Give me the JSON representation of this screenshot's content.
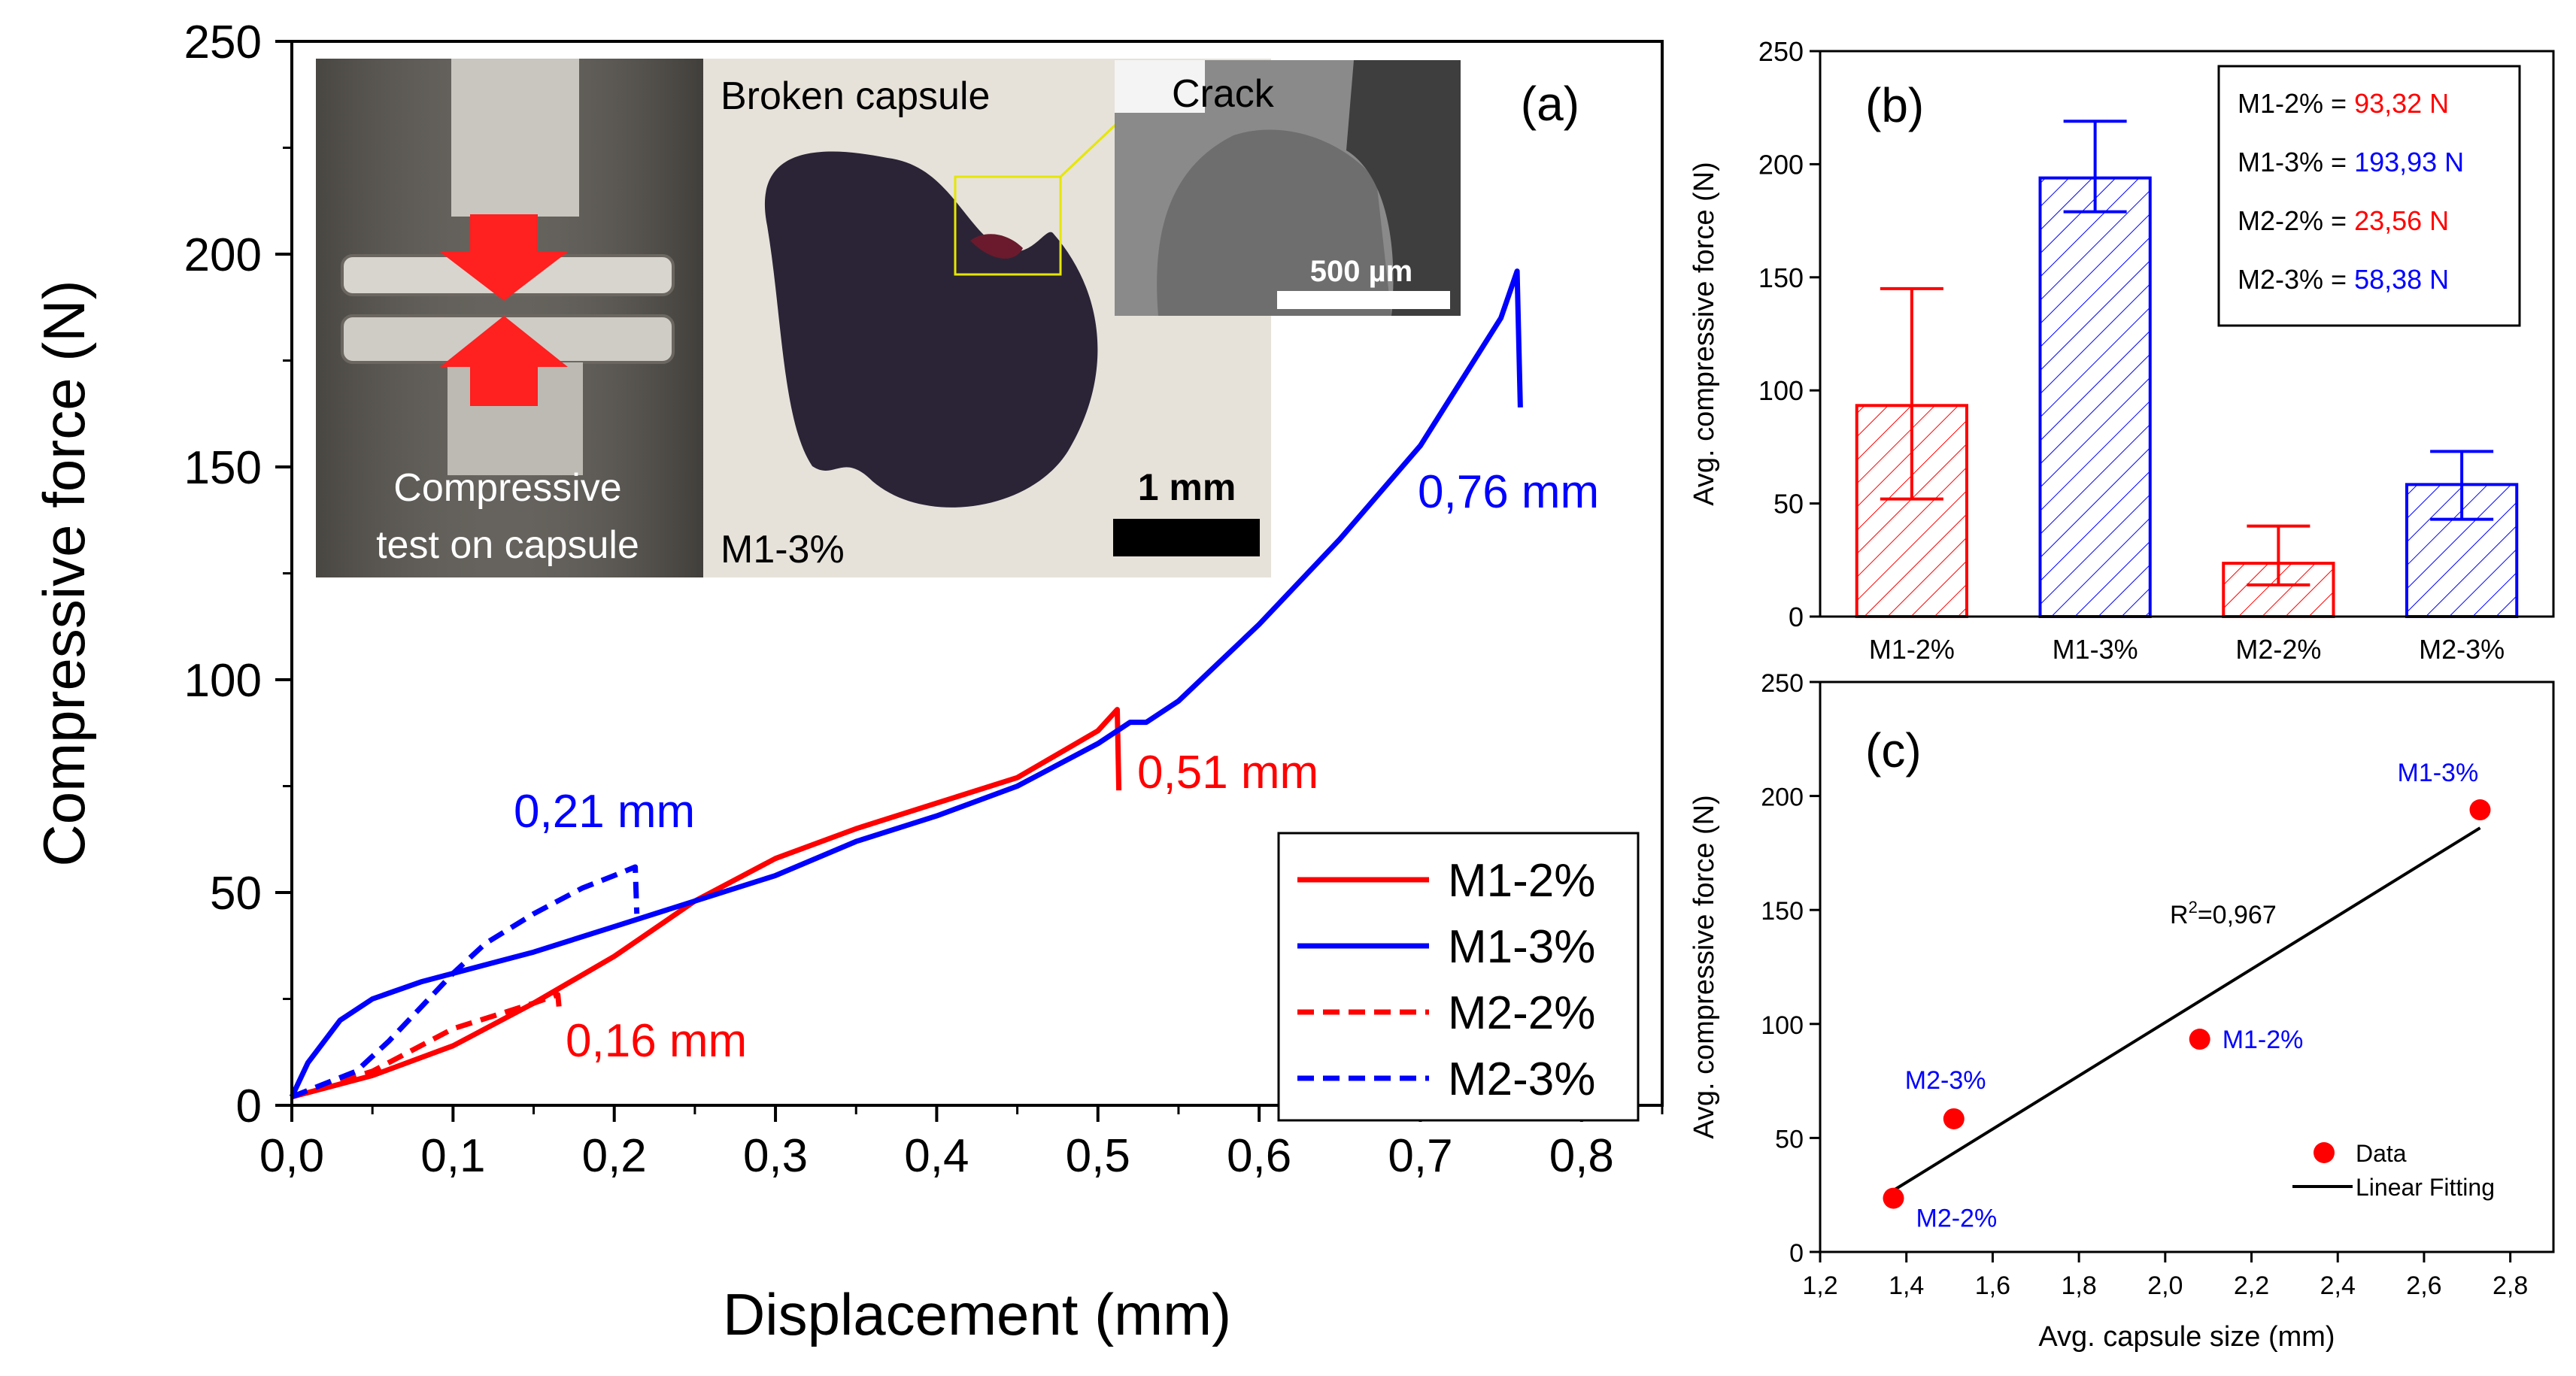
{
  "chart_data": [
    {
      "panel": "(a)",
      "type": "line",
      "xlabel": "Displacement (mm)",
      "ylabel": "Compressive force (N)",
      "xlim": [
        0,
        0.85
      ],
      "ylim": [
        0,
        250
      ],
      "xticks": [
        "0,0",
        "0,1",
        "0,2",
        "0,3",
        "0,4",
        "0,5",
        "0,6",
        "0,7",
        "0,8"
      ],
      "yticks": [
        "0",
        "50",
        "100",
        "150",
        "200",
        "250"
      ],
      "series": [
        {
          "name": "M1-2%",
          "color": "#ff0000",
          "style": "solid",
          "x": [
            0,
            0.05,
            0.1,
            0.15,
            0.2,
            0.25,
            0.3,
            0.35,
            0.4,
            0.45,
            0.5,
            0.512,
            0.513
          ],
          "y": [
            2,
            7,
            14,
            24,
            35,
            48,
            58,
            65,
            71,
            77,
            88,
            93,
            74
          ]
        },
        {
          "name": "M1-3%",
          "color": "#0000ff",
          "style": "solid",
          "x": [
            0,
            0.01,
            0.03,
            0.05,
            0.08,
            0.1,
            0.15,
            0.2,
            0.25,
            0.3,
            0.35,
            0.4,
            0.45,
            0.5,
            0.52,
            0.53,
            0.55,
            0.6,
            0.65,
            0.7,
            0.75,
            0.76,
            0.762
          ],
          "y": [
            2,
            10,
            20,
            25,
            29,
            31,
            36,
            42,
            48,
            54,
            62,
            68,
            75,
            85,
            90,
            90,
            95,
            113,
            133,
            155,
            185,
            196,
            164
          ]
        },
        {
          "name": "M2-2%",
          "color": "#ff0000",
          "style": "dashed",
          "x": [
            0,
            0.05,
            0.1,
            0.15,
            0.165,
            0.166
          ],
          "y": [
            2,
            8,
            18,
            24,
            26,
            22
          ]
        },
        {
          "name": "M2-3%",
          "color": "#0000ff",
          "style": "dashed",
          "x": [
            0,
            0.04,
            0.06,
            0.08,
            0.1,
            0.12,
            0.15,
            0.18,
            0.2,
            0.213,
            0.214
          ],
          "y": [
            2,
            8,
            15,
            23,
            31,
            38,
            45,
            51,
            54,
            56,
            45
          ]
        }
      ],
      "annotations": [
        {
          "text": "0,76 mm",
          "color": "#0000ff"
        },
        {
          "text": "0,51 mm",
          "color": "#ff0000"
        },
        {
          "text": "0,21 mm",
          "color": "#0000ff"
        },
        {
          "text": "0,16 mm",
          "color": "#ff0000"
        }
      ],
      "panel_label": "(a)",
      "legend": "bottom-right",
      "inset": {
        "photo_caption": [
          "Compressive",
          "test on capsule"
        ],
        "capsule_title": "Broken capsule",
        "crack_label": "Crack",
        "sample_label": "M1-3%",
        "scale_1": "1 mm",
        "scale_2": "500 µm"
      }
    },
    {
      "panel": "(b)",
      "type": "bar",
      "xlabel": "",
      "ylabel": "Avg. compressive force (N)",
      "ylim": [
        0,
        250
      ],
      "yticks": [
        "0",
        "50",
        "100",
        "150",
        "200",
        "250"
      ],
      "categories": [
        "M1-2%",
        "M1-3%",
        "M2-2%",
        "M2-3%"
      ],
      "values": [
        93.32,
        193.93,
        23.56,
        58.38
      ],
      "error_low": [
        52,
        179,
        14,
        43
      ],
      "error_high": [
        145,
        219,
        40,
        73
      ],
      "colors": [
        "#ff0000",
        "#0000ff",
        "#ff0000",
        "#0000ff"
      ],
      "legend": "top-right",
      "legend_entries": [
        {
          "label": "M1-2% = ",
          "value": "93,32 N",
          "color": "#ff0000"
        },
        {
          "label": "M1-3% = ",
          "value": "193,93 N",
          "color": "#0000ff"
        },
        {
          "label": "M2-2% = ",
          "value": "23,56 N",
          "color": "#ff0000"
        },
        {
          "label": "M2-3% = ",
          "value": "58,38 N",
          "color": "#0000ff"
        }
      ],
      "panel_label": "(b)"
    },
    {
      "panel": "(c)",
      "type": "scatter",
      "xlabel": "Avg. capsule size (mm)",
      "ylabel": "Avg. compressive force (N)",
      "xlim": [
        1.2,
        2.9
      ],
      "ylim": [
        0,
        250
      ],
      "xticks": [
        "1,2",
        "1,4",
        "1,6",
        "1,8",
        "2,0",
        "2,2",
        "2,4",
        "2,6",
        "2,8"
      ],
      "yticks": [
        "0",
        "50",
        "100",
        "150",
        "200",
        "250"
      ],
      "points": [
        {
          "label": "M2-2%",
          "x": 1.37,
          "y": 23.56
        },
        {
          "label": "M2-3%",
          "x": 1.51,
          "y": 58.38
        },
        {
          "label": "M1-2%",
          "x": 2.08,
          "y": 93.32
        },
        {
          "label": "M1-3%",
          "x": 2.73,
          "y": 193.93
        }
      ],
      "fit": {
        "x": [
          1.37,
          2.73
        ],
        "y": [
          27,
          186
        ]
      },
      "r2_label": "=0,967",
      "r2_prefix": "R",
      "r2_sup": "2",
      "legend": "bottom-right",
      "legend_entries": [
        "Data",
        "Linear Fitting"
      ],
      "panel_label": "(c)"
    }
  ]
}
